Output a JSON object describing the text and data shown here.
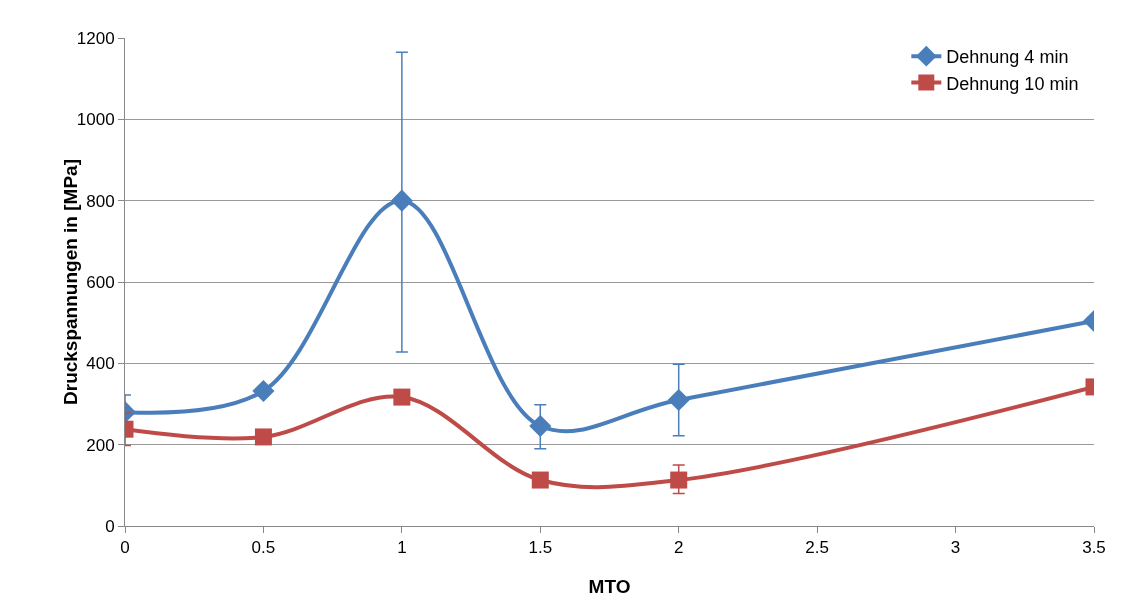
{
  "chart_data": {
    "type": "line",
    "xlabel": "MTO",
    "ylabel": "Druckspannungen in [MPa]",
    "x": [
      0,
      0.5,
      1,
      1.5,
      2,
      3.5
    ],
    "series": [
      {
        "name": "Dehnung 4 min",
        "color": "#4a7ebb",
        "marker": "diamond",
        "values": [
          280,
          332,
          800,
          246,
          310,
          504
        ],
        "errors": [
          42,
          null,
          [
            428,
            1165
          ],
          [
            190,
            298
          ],
          [
            222,
            398
          ],
          null
        ]
      },
      {
        "name": "Dehnung 10 min",
        "color": "#be4b48",
        "marker": "square",
        "values": [
          238,
          219,
          317,
          113,
          113,
          342
        ],
        "errors": [
          40,
          null,
          null,
          null,
          [
            80,
            150
          ],
          null
        ]
      }
    ],
    "xlim": [
      0,
      3.5
    ],
    "xticks": [
      0,
      0.5,
      1,
      1.5,
      2,
      2.5,
      3,
      3.5
    ],
    "ylim": [
      0,
      1200
    ],
    "yticks": [
      0,
      200,
      400,
      600,
      800,
      1000,
      1200
    ],
    "grid": "y",
    "legend": "top right",
    "line_style": "solid"
  }
}
